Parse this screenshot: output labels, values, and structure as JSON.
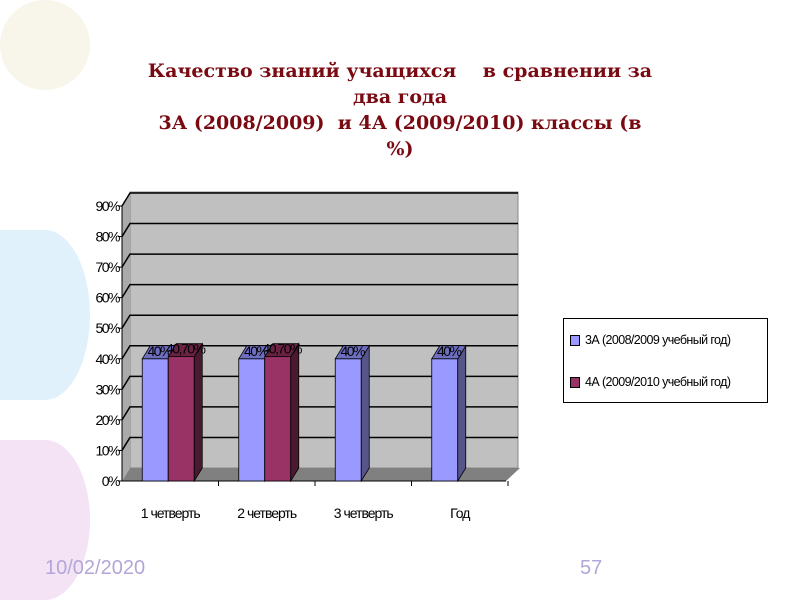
{
  "title_lines": [
    "Качество знаний учащихся    в сравнении за",
    "два года",
    "3А (2008/2009)  и 4А (2009/2010) классы (в",
    "%)"
  ],
  "footer": {
    "date": "10/02/2020",
    "page_number": "57"
  },
  "chart_data": {
    "type": "bar",
    "style": "3d-clustered",
    "categories": [
      "1 четверть",
      "2 четверть",
      "3 четверть",
      "Год"
    ],
    "series": [
      {
        "name": "3А (2008/2009 учебный год)",
        "values": [
          40,
          40,
          40,
          40
        ],
        "labels": [
          "40%",
          "40%",
          "40%",
          "40%"
        ],
        "color": "#9999ff"
      },
      {
        "name": "4А (2009/2010 учебный год)",
        "values": [
          40.7,
          40.7,
          null,
          null
        ],
        "labels": [
          "40,70%",
          "40,70%",
          null,
          null
        ],
        "color": "#993366"
      }
    ],
    "yticks": [
      "0%",
      "10%",
      "20%",
      "30%",
      "40%",
      "50%",
      "60%",
      "70%",
      "80%",
      "90%"
    ],
    "ylim": [
      0,
      90
    ],
    "grid": true,
    "legend": "right",
    "wall_color": "#c0c0c0",
    "floor_color": "#808080"
  }
}
